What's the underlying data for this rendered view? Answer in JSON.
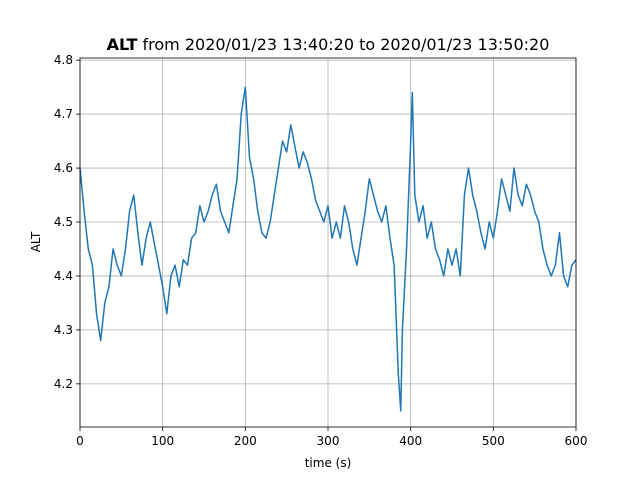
{
  "chart_data": {
    "type": "line",
    "title_variable": "ALT",
    "title": "from 2020/01/23 13:40:20 to 2020/01/23 13:50:20",
    "xlabel": "time (s)",
    "ylabel": "ALT",
    "x": [
      0,
      5,
      10,
      15,
      20,
      25,
      30,
      35,
      40,
      45,
      50,
      55,
      60,
      65,
      70,
      75,
      80,
      85,
      90,
      95,
      100,
      105,
      110,
      115,
      120,
      125,
      130,
      135,
      140,
      145,
      150,
      155,
      160,
      165,
      170,
      175,
      180,
      185,
      190,
      195,
      200,
      205,
      210,
      215,
      220,
      225,
      230,
      235,
      240,
      245,
      250,
      255,
      260,
      265,
      270,
      275,
      280,
      285,
      290,
      295,
      300,
      305,
      310,
      315,
      320,
      325,
      330,
      335,
      340,
      345,
      350,
      355,
      360,
      365,
      370,
      375,
      380,
      385,
      388,
      390,
      395,
      400,
      402,
      405,
      410,
      415,
      420,
      425,
      430,
      435,
      440,
      445,
      450,
      455,
      460,
      465,
      470,
      475,
      480,
      485,
      490,
      495,
      500,
      505,
      510,
      515,
      520,
      525,
      530,
      535,
      540,
      545,
      550,
      555,
      560,
      565,
      570,
      575,
      580,
      585,
      590,
      595,
      600
    ],
    "series": [
      {
        "name": "ALT",
        "color": "#1f77b4",
        "values": [
          4.6,
          4.52,
          4.45,
          4.42,
          4.33,
          4.28,
          4.35,
          4.38,
          4.45,
          4.42,
          4.4,
          4.45,
          4.52,
          4.55,
          4.48,
          4.42,
          4.47,
          4.5,
          4.46,
          4.42,
          4.38,
          4.33,
          4.4,
          4.42,
          4.38,
          4.43,
          4.42,
          4.47,
          4.48,
          4.53,
          4.5,
          4.52,
          4.55,
          4.57,
          4.52,
          4.5,
          4.48,
          4.53,
          4.58,
          4.7,
          4.75,
          4.62,
          4.58,
          4.52,
          4.48,
          4.47,
          4.5,
          4.55,
          4.6,
          4.65,
          4.63,
          4.68,
          4.64,
          4.6,
          4.63,
          4.61,
          4.58,
          4.54,
          4.52,
          4.5,
          4.53,
          4.47,
          4.5,
          4.47,
          4.53,
          4.5,
          4.45,
          4.42,
          4.47,
          4.52,
          4.58,
          4.55,
          4.52,
          4.5,
          4.53,
          4.47,
          4.42,
          4.22,
          4.15,
          4.3,
          4.45,
          4.65,
          4.74,
          4.55,
          4.5,
          4.53,
          4.47,
          4.5,
          4.45,
          4.43,
          4.4,
          4.45,
          4.42,
          4.45,
          4.4,
          4.55,
          4.6,
          4.55,
          4.52,
          4.48,
          4.45,
          4.5,
          4.47,
          4.52,
          4.58,
          4.55,
          4.52,
          4.6,
          4.55,
          4.53,
          4.57,
          4.55,
          4.52,
          4.5,
          4.45,
          4.42,
          4.4,
          4.42,
          4.48,
          4.4,
          4.38,
          4.42,
          4.43
        ]
      }
    ],
    "xlim": [
      0,
      600
    ],
    "xticks": [
      0,
      100,
      200,
      300,
      400,
      500,
      600
    ],
    "ylim": [
      4.12,
      4.804
    ],
    "yticks": [
      4.2,
      4.3,
      4.4,
      4.5,
      4.6,
      4.7,
      4.8
    ],
    "grid": true
  }
}
